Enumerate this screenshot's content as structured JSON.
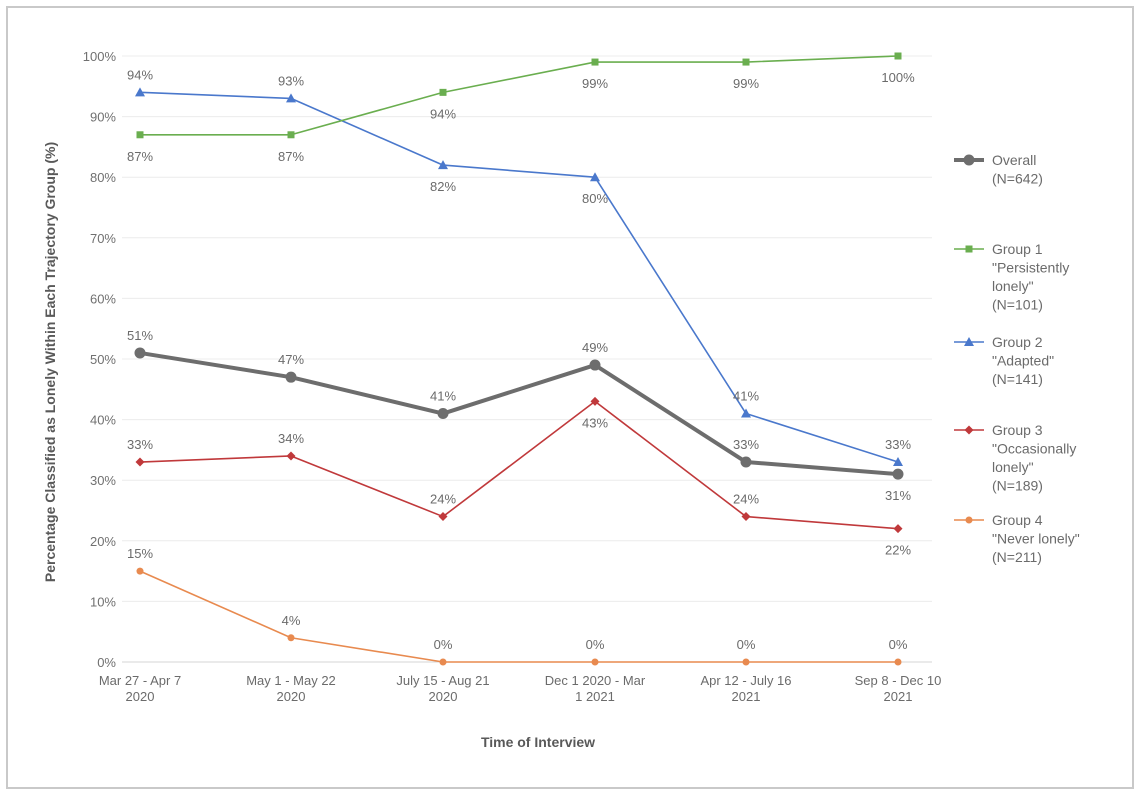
{
  "chart_data": {
    "type": "line",
    "title": "",
    "xlabel": "Time of Interview",
    "ylabel": "Percentage Classified as Lonely Within Each Trajectory Group  (%)",
    "ylim": [
      0,
      100
    ],
    "yticks": [
      "0%",
      "10%",
      "20%",
      "30%",
      "40%",
      "50%",
      "60%",
      "70%",
      "80%",
      "90%",
      "100%"
    ],
    "categories": [
      [
        "Mar 27 - Apr 7",
        "2020"
      ],
      [
        "May 1 - May 22",
        "2020"
      ],
      [
        "July 15 - Aug 21",
        "2020"
      ],
      [
        "Dec 1 2020 - Mar",
        "1 2021"
      ],
      [
        "Apr 12 - July 16",
        "2021"
      ],
      [
        "Sep 8 - Dec 10",
        "2021"
      ]
    ],
    "legend_position": "right",
    "series": [
      {
        "name": "Overall",
        "legend_lines": [
          "Overall",
          "(N=642)"
        ],
        "color": "#6d6d6d",
        "marker": "circle",
        "values": [
          51,
          47,
          41,
          49,
          33,
          31
        ],
        "labels": [
          "51%",
          "47%",
          "41%",
          "49%",
          "33%",
          "31%"
        ],
        "label_pos": [
          "above",
          "above",
          "above",
          "above",
          "above",
          "below"
        ]
      },
      {
        "name": "Group 1 \"Persistently lonely\"",
        "legend_lines": [
          "Group 1",
          "\"Persistently",
          "lonely\"",
          "(N=101)"
        ],
        "color": "#6aae4f",
        "marker": "square",
        "values": [
          87,
          87,
          94,
          99,
          99,
          100
        ],
        "labels": [
          "87%",
          "87%",
          "94%",
          "99%",
          "99%",
          "100%"
        ],
        "label_pos": [
          "below",
          "below",
          "below",
          "below",
          "below",
          "below"
        ]
      },
      {
        "name": "Group 2 \"Adapted\"",
        "legend_lines": [
          "Group 2",
          "\"Adapted\"",
          "(N=141)"
        ],
        "color": "#4a78cc",
        "marker": "triangle",
        "values": [
          94,
          93,
          82,
          80,
          41,
          33
        ],
        "labels": [
          "94%",
          "93%",
          "82%",
          "80%",
          "41%",
          "33%"
        ],
        "label_pos": [
          "above",
          "above",
          "below",
          "below",
          "above",
          "above"
        ]
      },
      {
        "name": "Group 3 \"Occasionally lonely\"",
        "legend_lines": [
          "Group 3",
          "\"Occasionally",
          "lonely\"",
          "(N=189)"
        ],
        "color": "#c0393b",
        "marker": "diamond",
        "values": [
          33,
          34,
          24,
          43,
          24,
          22
        ],
        "labels": [
          "33%",
          "34%",
          "24%",
          "43%",
          "24%",
          "22%"
        ],
        "label_pos": [
          "above",
          "above",
          "above",
          "below",
          "above",
          "below"
        ]
      },
      {
        "name": "Group 4 \"Never lonely\"",
        "legend_lines": [
          "Group 4",
          "\"Never lonely\"",
          "(N=211)"
        ],
        "color": "#e88a4f",
        "marker": "dot",
        "values": [
          15,
          4,
          0,
          0,
          0,
          0
        ],
        "labels": [
          "15%",
          "4%",
          "0%",
          "0%",
          "0%",
          "0%"
        ],
        "label_pos": [
          "above",
          "above",
          "above",
          "above",
          "above",
          "above"
        ]
      }
    ]
  }
}
